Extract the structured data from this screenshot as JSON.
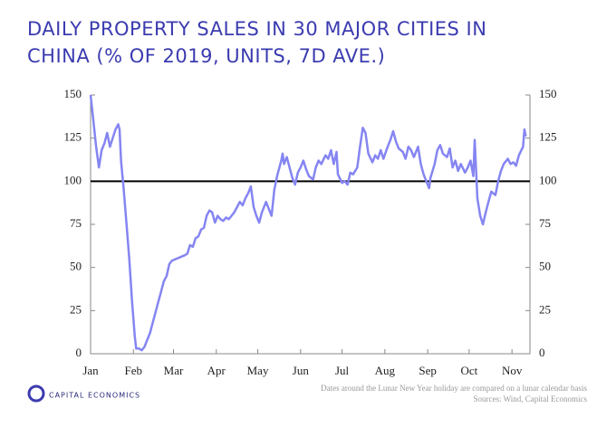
{
  "chart_data": {
    "type": "line",
    "title_lines": [
      "DAILY PROPERTY SALES IN 30 MAJOR CITIES IN",
      "CHINA (% OF 2019, UNITS, 7D AVE.)"
    ],
    "x": [
      0,
      2,
      4,
      6,
      8,
      10,
      12,
      14,
      16,
      18,
      20,
      21,
      22,
      24,
      26,
      28,
      30,
      32,
      33,
      35,
      37,
      39,
      41,
      43,
      45,
      47,
      49,
      51,
      53,
      55,
      57,
      59,
      62,
      65,
      68,
      70,
      72,
      74,
      76,
      78,
      80,
      82,
      84,
      86,
      88,
      90,
      92,
      94,
      96,
      98,
      100,
      102,
      104,
      106,
      108,
      110,
      112,
      114,
      116,
      118,
      120,
      122,
      124,
      127,
      129,
      131,
      133,
      135,
      138,
      139,
      140,
      142,
      144,
      146,
      148,
      150,
      152,
      154,
      156,
      158,
      161,
      163,
      165,
      167,
      170,
      172,
      174,
      176,
      178,
      179,
      182,
      184,
      186,
      188,
      190,
      193,
      195,
      197,
      199,
      201,
      204,
      206,
      208,
      210,
      212,
      215,
      217,
      219,
      221,
      223,
      226,
      228,
      230,
      232,
      234,
      237,
      239,
      241,
      243,
      245,
      246,
      249,
      251,
      253,
      255,
      258,
      260,
      262,
      264,
      266,
      268,
      271,
      273,
      275,
      277,
      278,
      280,
      282,
      284,
      286,
      288,
      290,
      293,
      295,
      297,
      299,
      302,
      304,
      306,
      308,
      310,
      313,
      314,
      315
    ],
    "series": [
      {
        "name": "Property sales",
        "color": "#8585f2",
        "values": [
          150,
          135,
          120,
          108,
          118,
          122,
          128,
          120,
          125,
          130,
          133,
          130,
          112,
          95,
          75,
          55,
          30,
          10,
          3,
          3,
          2,
          4,
          8,
          12,
          18,
          24,
          30,
          36,
          42,
          45,
          52,
          54,
          55,
          56,
          57,
          58,
          63,
          62,
          67,
          68,
          72,
          73,
          80,
          83,
          82,
          76,
          80,
          78,
          77,
          79,
          78,
          80,
          82,
          85,
          88,
          86,
          90,
          93,
          97,
          85,
          80,
          76,
          82,
          88,
          84,
          80,
          95,
          103,
          112,
          116,
          110,
          114,
          108,
          102,
          98,
          105,
          108,
          112,
          107,
          103,
          101,
          108,
          112,
          110,
          115,
          113,
          118,
          110,
          117,
          104,
          99,
          100,
          98,
          105,
          104,
          108,
          120,
          131,
          128,
          116,
          111,
          115,
          113,
          118,
          113,
          120,
          124,
          129,
          123,
          119,
          117,
          113,
          120,
          118,
          114,
          120,
          110,
          104,
          100,
          96,
          102,
          110,
          118,
          121,
          116,
          114,
          119,
          108,
          112,
          106,
          110,
          105,
          108,
          112,
          103,
          124,
          90,
          80,
          75,
          82,
          88,
          94,
          92,
          100,
          106,
          110,
          113,
          110,
          111,
          109,
          115,
          120,
          130,
          126
        ]
      }
    ],
    "xlim": [
      0,
      318
    ],
    "xticks": [
      {
        "value": 0,
        "label": "Jan"
      },
      {
        "value": 31,
        "label": "Feb"
      },
      {
        "value": 60,
        "label": "Mar"
      },
      {
        "value": 91,
        "label": "Apr"
      },
      {
        "value": 121,
        "label": "May"
      },
      {
        "value": 152,
        "label": "Jun"
      },
      {
        "value": 182,
        "label": "Jul"
      },
      {
        "value": 213,
        "label": "Aug"
      },
      {
        "value": 244,
        "label": "Sep"
      },
      {
        "value": 274,
        "label": "Oct"
      },
      {
        "value": 305,
        "label": "Nov"
      }
    ],
    "ylim": [
      0,
      150
    ],
    "yticks": [
      0,
      25,
      50,
      75,
      100,
      125,
      150
    ],
    "reference_line": 100,
    "notes": [
      "Dates around the Lunar New Year holiday are compared on a lunar calendar basis",
      "Sources: Wind, Capital Economics"
    ],
    "logo": "CAPITAL ECONOMICS"
  }
}
